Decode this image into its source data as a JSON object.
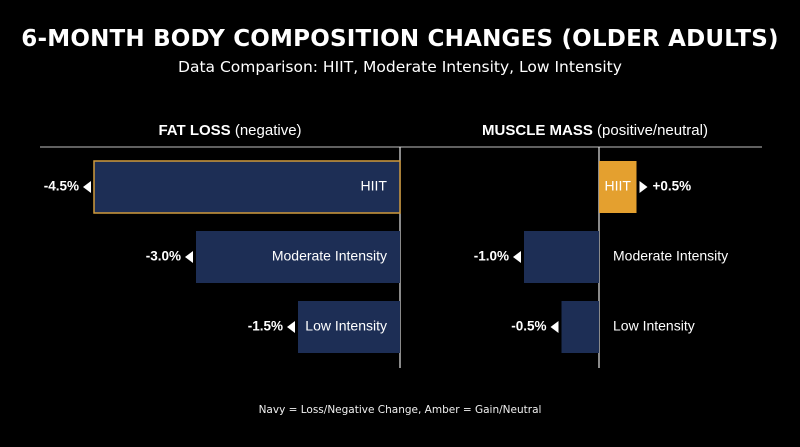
{
  "title": "6-MONTH BODY COMPOSITION CHANGES (OLDER ADULTS)",
  "subtitle": "Data Comparison: HIIT, Moderate Intensity, Low Intensity",
  "footnote": "Navy = Loss/Negative Change, Amber = Gain/Neutral",
  "colors": {
    "loss": "#1d2e55",
    "gain": "#e4a02f",
    "highlight_border": "#d09a3c",
    "background": "#000000"
  },
  "chart_data": [
    {
      "type": "bar",
      "panel_heading_bold": "FAT LOSS",
      "panel_heading_rest": " (negative)",
      "categories": [
        "HIIT",
        "Moderate Intensity",
        "Low Intensity"
      ],
      "values": [
        -4.5,
        -3.0,
        -1.5
      ],
      "value_labels": [
        "-4.5%",
        "-3.0%",
        "-1.5%"
      ],
      "orientation": "horizontal",
      "highlighted": "HIIT"
    },
    {
      "type": "bar",
      "panel_heading_bold": "MUSCLE MASS",
      "panel_heading_rest": " (positive/neutral)",
      "categories": [
        "HIIT",
        "Moderate Intensity",
        "Low Intensity"
      ],
      "values": [
        0.5,
        -1.0,
        -0.5
      ],
      "value_labels": [
        "+0.5%",
        "-1.0%",
        "-0.5%"
      ],
      "orientation": "horizontal"
    }
  ]
}
